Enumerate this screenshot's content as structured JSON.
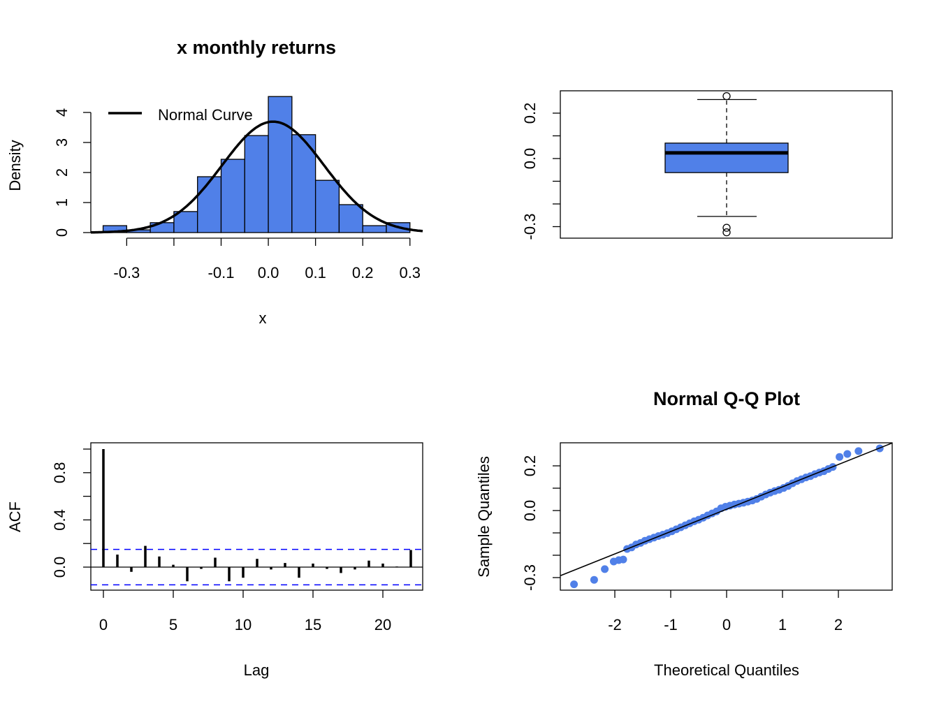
{
  "colors": {
    "fill": "#5080E8",
    "ci": "#0000FF",
    "ink": "#000000"
  },
  "chart_data": [
    {
      "type": "bar",
      "subtype": "histogram",
      "title": "x monthly returns",
      "xlabel": "x",
      "ylabel": "Density",
      "xlim": [
        -0.376,
        0.327
      ],
      "ylim": [
        0,
        4.53
      ],
      "xticks": [
        -0.3,
        -0.2,
        -0.1,
        0.0,
        0.1,
        0.2,
        0.3
      ],
      "xtick_labels": [
        "-0.3",
        "",
        "-0.1",
        "0.0",
        "0.1",
        "0.2",
        "0.3"
      ],
      "yticks": [
        0,
        1,
        2,
        3,
        4
      ],
      "ytick_labels": [
        "0",
        "1",
        "2",
        "3",
        "4"
      ],
      "bin_edges": [
        -0.35,
        -0.3,
        -0.25,
        -0.2,
        -0.15,
        -0.1,
        -0.05,
        0.0,
        0.05,
        0.1,
        0.15,
        0.2,
        0.25,
        0.3
      ],
      "density": [
        0.23,
        0.09,
        0.33,
        0.7,
        1.86,
        2.44,
        3.23,
        4.53,
        3.26,
        1.74,
        0.93,
        0.23,
        0.33
      ],
      "normal_curve": {
        "mean": 0.01,
        "sd": 0.108
      },
      "legend": {
        "label": "Normal Curve",
        "position": "top-left"
      }
    },
    {
      "type": "boxplot",
      "ylim": [
        -0.33,
        0.28
      ],
      "yticks": [
        -0.3,
        -0.2,
        -0.1,
        0.0,
        0.1,
        0.2
      ],
      "ytick_labels": [
        "-0.3",
        "",
        "",
        "0.0",
        "",
        "0.2"
      ],
      "q1": -0.062,
      "median": 0.025,
      "q3": 0.068,
      "whisker_low": -0.255,
      "whisker_high": 0.26,
      "outliers": [
        0.275,
        -0.305,
        -0.325
      ]
    },
    {
      "type": "bar",
      "subtype": "acf",
      "xlabel": "Lag",
      "ylabel": "ACF",
      "xlim": [
        -0.88,
        22.88
      ],
      "ylim": [
        -0.2,
        1.0
      ],
      "xticks": [
        0,
        5,
        10,
        15,
        20
      ],
      "xtick_labels": [
        "0",
        "5",
        "10",
        "15",
        "20"
      ],
      "yticks": [
        0,
        0.2,
        0.4,
        0.6,
        0.8,
        1.0
      ],
      "ytick_labels": [
        "0.0",
        "",
        "0.4",
        "",
        "0.8",
        ""
      ],
      "lags": [
        0,
        1,
        2,
        3,
        4,
        5,
        6,
        7,
        8,
        9,
        10,
        11,
        12,
        13,
        14,
        15,
        16,
        17,
        18,
        19,
        20,
        21,
        22
      ],
      "acf": [
        1.0,
        0.106,
        -0.04,
        0.18,
        0.09,
        0.02,
        -0.12,
        -0.015,
        0.08,
        -0.12,
        -0.09,
        0.07,
        -0.02,
        0.035,
        -0.09,
        0.03,
        -0.015,
        -0.05,
        -0.02,
        0.055,
        0.03,
        0.005,
        0.145
      ],
      "ci": 0.15
    },
    {
      "type": "scatter",
      "subtype": "qqplot",
      "title": "Normal Q-Q Plot",
      "xlabel": "Theoretical Quantiles",
      "ylabel": "Sample Quantiles",
      "xlim": [
        -2.97,
        2.97
      ],
      "ylim": [
        -0.355,
        0.3
      ],
      "xticks": [
        -2,
        -1,
        0,
        1,
        2
      ],
      "xtick_labels": [
        "-2",
        "-1",
        "0",
        "1",
        "2"
      ],
      "yticks": [
        -0.3,
        -0.2,
        -0.1,
        0.0,
        0.1,
        0.2
      ],
      "ytick_labels": [
        "-0.3",
        "",
        "",
        "0.0",
        "",
        "0.2"
      ],
      "qqline": {
        "intercept": 0.006,
        "slope": 0.1
      },
      "points": [
        [
          -2.73,
          -0.33
        ],
        [
          -2.37,
          -0.31
        ],
        [
          -2.18,
          -0.262
        ],
        [
          -2.02,
          -0.228
        ],
        [
          -1.93,
          -0.222
        ],
        [
          -1.85,
          -0.219
        ],
        [
          -1.78,
          -0.172
        ],
        [
          -1.7,
          -0.165
        ],
        [
          -1.62,
          -0.152
        ],
        [
          -1.54,
          -0.145
        ],
        [
          -1.46,
          -0.135
        ],
        [
          -1.38,
          -0.128
        ],
        [
          -1.3,
          -0.121
        ],
        [
          -1.22,
          -0.114
        ],
        [
          -1.14,
          -0.108
        ],
        [
          -1.06,
          -0.101
        ],
        [
          -0.98,
          -0.093
        ],
        [
          -0.9,
          -0.084
        ],
        [
          -0.82,
          -0.075
        ],
        [
          -0.74,
          -0.066
        ],
        [
          -0.66,
          -0.057
        ],
        [
          -0.58,
          -0.048
        ],
        [
          -0.5,
          -0.041
        ],
        [
          -0.42,
          -0.032
        ],
        [
          -0.34,
          -0.022
        ],
        [
          -0.26,
          -0.013
        ],
        [
          -0.18,
          -0.004
        ],
        [
          -0.1,
          0.01
        ],
        [
          -0.02,
          0.017
        ],
        [
          0.06,
          0.022
        ],
        [
          0.14,
          0.027
        ],
        [
          0.22,
          0.031
        ],
        [
          0.3,
          0.035
        ],
        [
          0.38,
          0.04
        ],
        [
          0.46,
          0.045
        ],
        [
          0.54,
          0.052
        ],
        [
          0.62,
          0.062
        ],
        [
          0.7,
          0.072
        ],
        [
          0.78,
          0.08
        ],
        [
          0.86,
          0.087
        ],
        [
          0.94,
          0.093
        ],
        [
          1.02,
          0.101
        ],
        [
          1.1,
          0.11
        ],
        [
          1.18,
          0.122
        ],
        [
          1.26,
          0.132
        ],
        [
          1.34,
          0.14
        ],
        [
          1.42,
          0.148
        ],
        [
          1.5,
          0.154
        ],
        [
          1.58,
          0.163
        ],
        [
          1.66,
          0.17
        ],
        [
          1.74,
          0.176
        ],
        [
          1.82,
          0.186
        ],
        [
          1.9,
          0.195
        ],
        [
          2.02,
          0.24
        ],
        [
          2.16,
          0.253
        ],
        [
          2.36,
          0.266
        ],
        [
          2.74,
          0.278
        ]
      ]
    }
  ]
}
